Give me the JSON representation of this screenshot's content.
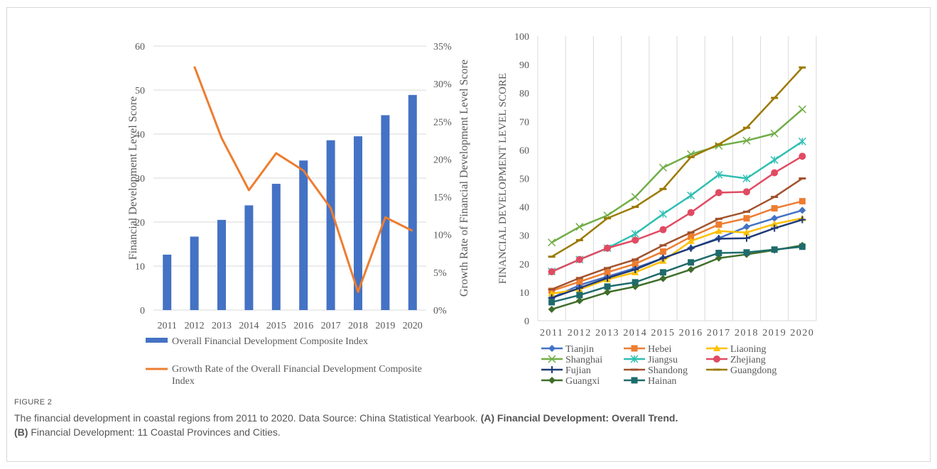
{
  "figure": {
    "label": "FIGURE 2",
    "caption_main": "The financial development in coastal regions from 2011 to 2020. Data Source: China Statistical Yearbook.",
    "panel_a_tag": "(A)",
    "panel_a_text": "Financial Development: Overall Trend.",
    "panel_b_tag": "(B)",
    "panel_b_text": "Financial Development: 11 Coastal Provinces and Cities."
  },
  "colors": {
    "bar": "#4472c4",
    "growth_line": "#ed7d31",
    "grid": "#d9d9d9",
    "text": "#595959"
  },
  "chart_data": [
    {
      "type": "bar",
      "categories": [
        "2011",
        "2012",
        "2013",
        "2014",
        "2015",
        "2016",
        "2017",
        "2018",
        "2019",
        "2020"
      ],
      "ylabel": "Financial Development Level Score",
      "y2label": "Growth Rate of Financial Development Level Score",
      "ylim": [
        0,
        60
      ],
      "y2lim": [
        0,
        35
      ],
      "yticks": [
        "0",
        "10",
        "20",
        "30",
        "40",
        "50",
        "60"
      ],
      "y2ticks": [
        "0%",
        "5%",
        "10%",
        "15%",
        "20%",
        "25%",
        "30%",
        "35%"
      ],
      "grid": true,
      "legend_position": "bottom",
      "series": [
        {
          "name": "Overall Financial Development Composite Index",
          "type": "bar",
          "axis": "left",
          "color": "#4472c4",
          "values": [
            12.6,
            16.7,
            20.5,
            23.8,
            28.7,
            34.0,
            38.6,
            39.5,
            44.3,
            48.9
          ]
        },
        {
          "name": "Growth Rate of the Overall Financial Development Composite Index",
          "type": "line",
          "axis": "right",
          "color": "#ed7d31",
          "values": [
            null,
            32.3,
            22.8,
            15.9,
            20.8,
            18.5,
            13.5,
            2.4,
            12.3,
            10.5
          ]
        }
      ]
    },
    {
      "type": "line",
      "categories": [
        "2011",
        "2012",
        "2013",
        "2014",
        "2015",
        "2016",
        "2017",
        "2018",
        "2019",
        "2020"
      ],
      "ylabel": "FINANCIAL DEVELOPMENT LEVEL SCORE",
      "ylim": [
        0,
        100
      ],
      "yticks": [
        "0",
        "10",
        "20",
        "30",
        "40",
        "50",
        "60",
        "70",
        "80",
        "90",
        "100"
      ],
      "grid": true,
      "legend_position": "bottom",
      "series": [
        {
          "name": "Tianjin",
          "color": "#4472c4",
          "marker": "diamond",
          "values": [
            8.0,
            12.5,
            15.5,
            18.5,
            22.0,
            25.5,
            29.0,
            33.0,
            36.0,
            38.8
          ]
        },
        {
          "name": "Hebei",
          "color": "#ed7d31",
          "marker": "square",
          "values": [
            10.5,
            13.7,
            17.0,
            20.0,
            24.3,
            29.5,
            33.8,
            36.0,
            39.5,
            42.0
          ]
        },
        {
          "name": "Liaoning",
          "color": "#ffc000",
          "marker": "triangle",
          "values": [
            9.5,
            11.0,
            14.5,
            17.0,
            21.0,
            28.0,
            31.5,
            31.0,
            34.0,
            36.0
          ]
        },
        {
          "name": "Shanghai",
          "color": "#70ad47",
          "marker": "x",
          "values": [
            27.5,
            33.0,
            37.0,
            43.5,
            53.8,
            58.5,
            61.5,
            63.3,
            65.8,
            74.3
          ]
        },
        {
          "name": "Jiangsu",
          "color": "#2fbfb2",
          "marker": "star",
          "values": [
            17.3,
            21.5,
            25.5,
            30.5,
            37.5,
            44.0,
            51.3,
            50.0,
            56.5,
            63.0
          ]
        },
        {
          "name": "Zhejiang",
          "color": "#e04b62",
          "marker": "circle",
          "values": [
            17.2,
            21.5,
            25.5,
            28.3,
            32.0,
            38.0,
            45.0,
            45.3,
            52.0,
            57.8
          ]
        },
        {
          "name": "Fujian",
          "color": "#1f3a78",
          "marker": "plus",
          "values": [
            8.0,
            11.5,
            15.0,
            18.0,
            22.0,
            25.5,
            28.8,
            29.0,
            32.5,
            35.5
          ]
        },
        {
          "name": "Shandong",
          "color": "#a0522d",
          "marker": "dash",
          "values": [
            11.0,
            15.0,
            18.5,
            21.5,
            26.5,
            31.0,
            35.8,
            38.3,
            43.5,
            50.0
          ]
        },
        {
          "name": "Guangdong",
          "color": "#9c7a00",
          "marker": "dash",
          "values": [
            22.5,
            28.3,
            36.0,
            40.0,
            46.3,
            57.5,
            62.0,
            67.8,
            78.3,
            89.0
          ]
        },
        {
          "name": "Guangxi",
          "color": "#3f6e2a",
          "marker": "diamond",
          "values": [
            4.0,
            7.0,
            10.0,
            12.0,
            14.8,
            18.0,
            22.0,
            23.3,
            24.8,
            26.5
          ]
        },
        {
          "name": "Hainan",
          "color": "#1f6b6b",
          "marker": "square",
          "values": [
            6.5,
            9.0,
            12.0,
            13.5,
            17.0,
            20.5,
            23.8,
            24.0,
            25.0,
            26.0
          ]
        }
      ]
    }
  ]
}
